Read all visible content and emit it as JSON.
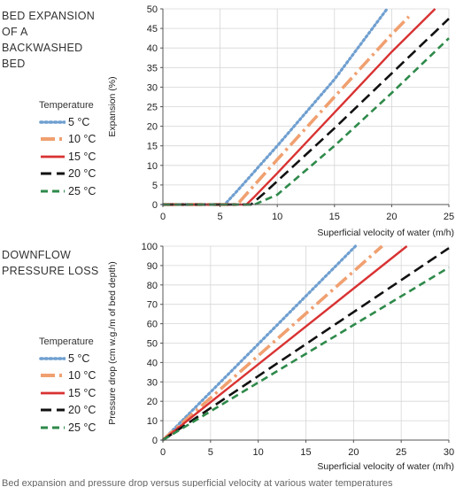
{
  "panel1": {
    "title_lines": [
      "BED EXPANSION",
      "OF A",
      "BACKWASHED",
      "BED"
    ],
    "legend_title": "Temperature"
  },
  "panel2": {
    "title_lines": [
      "DOWNFLOW",
      "PRESSURE LOSS"
    ],
    "legend_title": "Temperature"
  },
  "styles": {
    "5 °C": {
      "color": "#6f9fd0",
      "dash": "2 3.2",
      "width": 3.2,
      "cap": "round"
    },
    "10 °C": {
      "color": "#f0a070",
      "dash": "16 5 3 5",
      "width": 3.6,
      "cap": "butt"
    },
    "15 °C": {
      "color": "#d93232",
      "dash": "",
      "width": 2.4,
      "cap": "butt"
    },
    "20 °C": {
      "color": "#111111",
      "dash": "12 6",
      "width": 2.6,
      "cap": "butt"
    },
    "25 °C": {
      "color": "#2e8a4a",
      "dash": "8 5",
      "width": 2.6,
      "cap": "butt"
    }
  },
  "chart_data": [
    {
      "type": "line",
      "title": "BED EXPANSION OF A BACKWASHED BED",
      "xlabel": "Superficial velocity of water (m/h)",
      "ylabel": "Expansion (%)",
      "xlim": [
        0,
        25
      ],
      "ylim": [
        0,
        50
      ],
      "xticks": [
        0,
        5,
        10,
        15,
        20,
        25
      ],
      "yticks": [
        0,
        5,
        10,
        15,
        20,
        25,
        30,
        35,
        40,
        45,
        50
      ],
      "grid": true,
      "legend_title": "Temperature",
      "series": [
        {
          "name": "5 °C",
          "x": [
            0,
            5.4,
            6.5,
            10,
            15,
            19.6
          ],
          "y": [
            0,
            0,
            3.5,
            15,
            32,
            50
          ]
        },
        {
          "name": "10 °C",
          "x": [
            0,
            6.5,
            7.7,
            10,
            15,
            20,
            21.5
          ],
          "y": [
            0,
            0,
            4,
            11.5,
            27.5,
            43.5,
            48
          ]
        },
        {
          "name": "15 °C",
          "x": [
            0,
            7.3,
            8.0,
            10,
            15,
            20,
            23.8
          ],
          "y": [
            0,
            0,
            2,
            8,
            23.5,
            39,
            50
          ]
        },
        {
          "name": "20 °C",
          "x": [
            0,
            7.7,
            8.9,
            10,
            15,
            20,
            25
          ],
          "y": [
            0,
            0,
            3,
            6,
            19.5,
            33.5,
            47.5
          ]
        },
        {
          "name": "25 °C",
          "x": [
            0,
            8.0,
            10,
            15,
            20,
            25
          ],
          "y": [
            0,
            0,
            2.5,
            15,
            28.5,
            42.5
          ]
        }
      ]
    },
    {
      "type": "line",
      "title": "DOWNFLOW PRESSURE LOSS",
      "xlabel": "Superficial velocity of water (m/h)",
      "ylabel": "Pressure drop (cm w.g./m of bed depth)",
      "xlim": [
        0,
        30
      ],
      "ylim": [
        0,
        100
      ],
      "xticks": [
        0,
        5,
        10,
        15,
        20,
        25,
        30
      ],
      "yticks": [
        0,
        10,
        20,
        30,
        40,
        50,
        60,
        70,
        80,
        90,
        100
      ],
      "grid": true,
      "legend_title": "Temperature",
      "series": [
        {
          "name": "5 °C",
          "x": [
            0,
            20.2
          ],
          "y": [
            0,
            100
          ]
        },
        {
          "name": "10 °C",
          "x": [
            0,
            23.0
          ],
          "y": [
            0,
            100
          ]
        },
        {
          "name": "15 °C",
          "x": [
            0,
            25.6
          ],
          "y": [
            0,
            100
          ]
        },
        {
          "name": "20 °C",
          "x": [
            0,
            30
          ],
          "y": [
            0,
            99
          ]
        },
        {
          "name": "25 °C",
          "x": [
            0,
            30
          ],
          "y": [
            0,
            89
          ]
        }
      ]
    }
  ],
  "caption": "Bed expansion and pressure drop versus superficial velocity at various water temperatures"
}
